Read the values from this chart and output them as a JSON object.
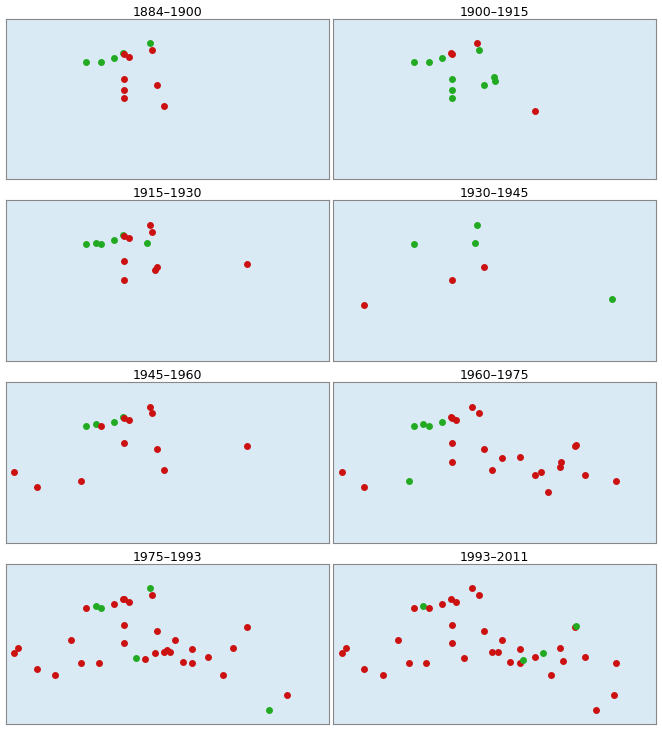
{
  "panels": [
    {
      "title": "1884–1900",
      "stations": [
        {
          "lon": 3.0,
          "lat": 43.3,
          "color": "green"
        },
        {
          "lon": 5.4,
          "lat": 43.3,
          "color": "green"
        },
        {
          "lon": 7.5,
          "lat": 43.8,
          "color": "green"
        },
        {
          "lon": 8.9,
          "lat": 44.4,
          "color": "green"
        },
        {
          "lon": 13.2,
          "lat": 45.6,
          "color": "green"
        },
        {
          "lon": 9.1,
          "lat": 44.3,
          "color": "red"
        },
        {
          "lon": 9.8,
          "lat": 44.0,
          "color": "red"
        },
        {
          "lon": 9.1,
          "lat": 41.3,
          "color": "red"
        },
        {
          "lon": 9.1,
          "lat": 40.1,
          "color": "red"
        },
        {
          "lon": 9.1,
          "lat": 39.1,
          "color": "red"
        },
        {
          "lon": 13.5,
          "lat": 44.8,
          "color": "red"
        },
        {
          "lon": 14.3,
          "lat": 40.6,
          "color": "red"
        },
        {
          "lon": 15.5,
          "lat": 38.1,
          "color": "red"
        }
      ]
    },
    {
      "title": "1900–1915",
      "stations": [
        {
          "lon": 3.0,
          "lat": 43.3,
          "color": "green"
        },
        {
          "lon": 5.4,
          "lat": 43.3,
          "color": "green"
        },
        {
          "lon": 7.5,
          "lat": 43.8,
          "color": "green"
        },
        {
          "lon": 9.1,
          "lat": 41.3,
          "color": "green"
        },
        {
          "lon": 9.1,
          "lat": 40.1,
          "color": "green"
        },
        {
          "lon": 9.1,
          "lat": 39.1,
          "color": "green"
        },
        {
          "lon": 13.5,
          "lat": 44.8,
          "color": "green"
        },
        {
          "lon": 14.3,
          "lat": 40.6,
          "color": "green"
        },
        {
          "lon": 15.9,
          "lat": 41.6,
          "color": "green"
        },
        {
          "lon": 16.1,
          "lat": 41.1,
          "color": "green"
        },
        {
          "lon": 8.9,
          "lat": 44.4,
          "color": "red"
        },
        {
          "lon": 9.1,
          "lat": 44.3,
          "color": "red"
        },
        {
          "lon": 13.2,
          "lat": 45.6,
          "color": "red"
        },
        {
          "lon": 22.5,
          "lat": 37.5,
          "color": "red"
        }
      ]
    },
    {
      "title": "1915–1930",
      "stations": [
        {
          "lon": 3.0,
          "lat": 43.3,
          "color": "green"
        },
        {
          "lon": 4.5,
          "lat": 43.5,
          "color": "green"
        },
        {
          "lon": 5.4,
          "lat": 43.3,
          "color": "green"
        },
        {
          "lon": 7.5,
          "lat": 43.8,
          "color": "green"
        },
        {
          "lon": 8.9,
          "lat": 44.4,
          "color": "green"
        },
        {
          "lon": 12.8,
          "lat": 43.5,
          "color": "green"
        },
        {
          "lon": 9.1,
          "lat": 44.3,
          "color": "red"
        },
        {
          "lon": 9.8,
          "lat": 44.0,
          "color": "red"
        },
        {
          "lon": 9.1,
          "lat": 41.3,
          "color": "red"
        },
        {
          "lon": 9.1,
          "lat": 39.1,
          "color": "red"
        },
        {
          "lon": 13.2,
          "lat": 45.6,
          "color": "red"
        },
        {
          "lon": 13.5,
          "lat": 44.8,
          "color": "red"
        },
        {
          "lon": 14.3,
          "lat": 40.6,
          "color": "red"
        },
        {
          "lon": 14.0,
          "lat": 40.2,
          "color": "red"
        },
        {
          "lon": 28.9,
          "lat": 41.0,
          "color": "red"
        }
      ]
    },
    {
      "title": "1930–1945",
      "stations": [
        {
          "lon": 3.0,
          "lat": 43.3,
          "color": "green"
        },
        {
          "lon": 12.8,
          "lat": 43.5,
          "color": "green"
        },
        {
          "lon": 13.2,
          "lat": 45.6,
          "color": "green"
        },
        {
          "lon": 34.9,
          "lat": 36.8,
          "color": "green"
        },
        {
          "lon": -5.0,
          "lat": 36.1,
          "color": "red"
        },
        {
          "lon": 9.1,
          "lat": 39.1,
          "color": "red"
        },
        {
          "lon": 14.3,
          "lat": 40.6,
          "color": "red"
        }
      ]
    },
    {
      "title": "1945–1960",
      "stations": [
        {
          "lon": -8.6,
          "lat": 37.9,
          "color": "red"
        },
        {
          "lon": -5.0,
          "lat": 36.1,
          "color": "red"
        },
        {
          "lon": 2.2,
          "lat": 36.8,
          "color": "red"
        },
        {
          "lon": 3.0,
          "lat": 43.3,
          "color": "green"
        },
        {
          "lon": 4.5,
          "lat": 43.5,
          "color": "green"
        },
        {
          "lon": 5.4,
          "lat": 43.3,
          "color": "red"
        },
        {
          "lon": 7.5,
          "lat": 43.8,
          "color": "green"
        },
        {
          "lon": 8.9,
          "lat": 44.4,
          "color": "green"
        },
        {
          "lon": 9.1,
          "lat": 44.3,
          "color": "red"
        },
        {
          "lon": 9.8,
          "lat": 44.0,
          "color": "red"
        },
        {
          "lon": 9.1,
          "lat": 41.3,
          "color": "red"
        },
        {
          "lon": 13.2,
          "lat": 45.6,
          "color": "red"
        },
        {
          "lon": 13.5,
          "lat": 44.8,
          "color": "red"
        },
        {
          "lon": 14.3,
          "lat": 40.6,
          "color": "red"
        },
        {
          "lon": 15.5,
          "lat": 38.1,
          "color": "red"
        },
        {
          "lon": 28.9,
          "lat": 41.0,
          "color": "red"
        }
      ]
    },
    {
      "title": "1960–1975",
      "stations": [
        {
          "lon": -8.6,
          "lat": 37.9,
          "color": "red"
        },
        {
          "lon": -5.0,
          "lat": 36.1,
          "color": "red"
        },
        {
          "lon": 2.2,
          "lat": 36.8,
          "color": "green"
        },
        {
          "lon": 3.0,
          "lat": 43.3,
          "color": "green"
        },
        {
          "lon": 4.5,
          "lat": 43.5,
          "color": "green"
        },
        {
          "lon": 5.4,
          "lat": 43.3,
          "color": "green"
        },
        {
          "lon": 7.5,
          "lat": 43.8,
          "color": "green"
        },
        {
          "lon": 8.9,
          "lat": 44.4,
          "color": "red"
        },
        {
          "lon": 9.1,
          "lat": 44.3,
          "color": "red"
        },
        {
          "lon": 9.8,
          "lat": 44.0,
          "color": "red"
        },
        {
          "lon": 9.1,
          "lat": 41.3,
          "color": "red"
        },
        {
          "lon": 9.1,
          "lat": 39.1,
          "color": "red"
        },
        {
          "lon": 12.3,
          "lat": 45.6,
          "color": "red"
        },
        {
          "lon": 13.5,
          "lat": 44.8,
          "color": "red"
        },
        {
          "lon": 14.3,
          "lat": 40.6,
          "color": "red"
        },
        {
          "lon": 15.5,
          "lat": 38.1,
          "color": "red"
        },
        {
          "lon": 17.2,
          "lat": 39.5,
          "color": "red"
        },
        {
          "lon": 20.0,
          "lat": 39.6,
          "color": "red"
        },
        {
          "lon": 22.5,
          "lat": 37.5,
          "color": "red"
        },
        {
          "lon": 23.5,
          "lat": 37.9,
          "color": "red"
        },
        {
          "lon": 24.5,
          "lat": 35.5,
          "color": "red"
        },
        {
          "lon": 26.5,
          "lat": 38.5,
          "color": "red"
        },
        {
          "lon": 26.7,
          "lat": 39.0,
          "color": "red"
        },
        {
          "lon": 28.9,
          "lat": 41.0,
          "color": "red"
        },
        {
          "lon": 29.1,
          "lat": 41.1,
          "color": "red"
        },
        {
          "lon": 30.5,
          "lat": 37.5,
          "color": "red"
        },
        {
          "lon": 35.5,
          "lat": 36.8,
          "color": "red"
        }
      ]
    },
    {
      "title": "1975–1993",
      "stations": [
        {
          "lon": -8.6,
          "lat": 37.9,
          "color": "red"
        },
        {
          "lon": -8.0,
          "lat": 38.5,
          "color": "red"
        },
        {
          "lon": -5.0,
          "lat": 36.1,
          "color": "red"
        },
        {
          "lon": -2.0,
          "lat": 35.4,
          "color": "red"
        },
        {
          "lon": 0.5,
          "lat": 39.5,
          "color": "red"
        },
        {
          "lon": 2.2,
          "lat": 36.8,
          "color": "red"
        },
        {
          "lon": 3.0,
          "lat": 43.3,
          "color": "red"
        },
        {
          "lon": 4.5,
          "lat": 43.5,
          "color": "green"
        },
        {
          "lon": 5.0,
          "lat": 36.8,
          "color": "red"
        },
        {
          "lon": 5.4,
          "lat": 43.3,
          "color": "green"
        },
        {
          "lon": 7.5,
          "lat": 43.8,
          "color": "red"
        },
        {
          "lon": 8.9,
          "lat": 44.4,
          "color": "red"
        },
        {
          "lon": 9.1,
          "lat": 44.3,
          "color": "red"
        },
        {
          "lon": 9.8,
          "lat": 44.0,
          "color": "red"
        },
        {
          "lon": 9.1,
          "lat": 41.3,
          "color": "red"
        },
        {
          "lon": 9.1,
          "lat": 39.1,
          "color": "red"
        },
        {
          "lon": 11.0,
          "lat": 37.4,
          "color": "green"
        },
        {
          "lon": 12.5,
          "lat": 37.3,
          "color": "red"
        },
        {
          "lon": 13.2,
          "lat": 45.6,
          "color": "green"
        },
        {
          "lon": 13.5,
          "lat": 44.8,
          "color": "red"
        },
        {
          "lon": 14.0,
          "lat": 38.0,
          "color": "red"
        },
        {
          "lon": 14.3,
          "lat": 40.6,
          "color": "red"
        },
        {
          "lon": 15.5,
          "lat": 38.1,
          "color": "red"
        },
        {
          "lon": 15.9,
          "lat": 38.3,
          "color": "red"
        },
        {
          "lon": 16.5,
          "lat": 38.1,
          "color": "red"
        },
        {
          "lon": 17.2,
          "lat": 39.5,
          "color": "red"
        },
        {
          "lon": 18.5,
          "lat": 36.9,
          "color": "red"
        },
        {
          "lon": 20.0,
          "lat": 36.8,
          "color": "red"
        },
        {
          "lon": 20.0,
          "lat": 38.4,
          "color": "red"
        },
        {
          "lon": 22.5,
          "lat": 37.5,
          "color": "red"
        },
        {
          "lon": 25.0,
          "lat": 35.4,
          "color": "red"
        },
        {
          "lon": 26.5,
          "lat": 38.5,
          "color": "red"
        },
        {
          "lon": 28.9,
          "lat": 41.0,
          "color": "red"
        },
        {
          "lon": 32.3,
          "lat": 31.2,
          "color": "green"
        },
        {
          "lon": 35.2,
          "lat": 33.0,
          "color": "red"
        }
      ]
    },
    {
      "title": "1993–2011",
      "stations": [
        {
          "lon": -8.6,
          "lat": 37.9,
          "color": "red"
        },
        {
          "lon": -8.0,
          "lat": 38.5,
          "color": "red"
        },
        {
          "lon": -5.0,
          "lat": 36.1,
          "color": "red"
        },
        {
          "lon": -2.0,
          "lat": 35.4,
          "color": "red"
        },
        {
          "lon": 0.5,
          "lat": 39.5,
          "color": "red"
        },
        {
          "lon": 2.2,
          "lat": 36.8,
          "color": "red"
        },
        {
          "lon": 3.0,
          "lat": 43.3,
          "color": "red"
        },
        {
          "lon": 4.5,
          "lat": 43.5,
          "color": "green"
        },
        {
          "lon": 5.0,
          "lat": 36.8,
          "color": "red"
        },
        {
          "lon": 5.4,
          "lat": 43.3,
          "color": "red"
        },
        {
          "lon": 7.5,
          "lat": 43.8,
          "color": "red"
        },
        {
          "lon": 8.9,
          "lat": 44.4,
          "color": "red"
        },
        {
          "lon": 9.8,
          "lat": 44.0,
          "color": "red"
        },
        {
          "lon": 9.1,
          "lat": 41.3,
          "color": "red"
        },
        {
          "lon": 9.1,
          "lat": 39.1,
          "color": "red"
        },
        {
          "lon": 11.0,
          "lat": 37.4,
          "color": "red"
        },
        {
          "lon": 12.3,
          "lat": 45.6,
          "color": "red"
        },
        {
          "lon": 13.5,
          "lat": 44.8,
          "color": "red"
        },
        {
          "lon": 14.3,
          "lat": 40.6,
          "color": "red"
        },
        {
          "lon": 15.5,
          "lat": 38.1,
          "color": "red"
        },
        {
          "lon": 16.5,
          "lat": 38.1,
          "color": "red"
        },
        {
          "lon": 17.2,
          "lat": 39.5,
          "color": "red"
        },
        {
          "lon": 18.5,
          "lat": 36.9,
          "color": "red"
        },
        {
          "lon": 20.0,
          "lat": 36.8,
          "color": "red"
        },
        {
          "lon": 20.0,
          "lat": 38.4,
          "color": "red"
        },
        {
          "lon": 20.5,
          "lat": 37.1,
          "color": "green"
        },
        {
          "lon": 22.5,
          "lat": 37.5,
          "color": "red"
        },
        {
          "lon": 23.7,
          "lat": 37.9,
          "color": "green"
        },
        {
          "lon": 25.0,
          "lat": 35.4,
          "color": "red"
        },
        {
          "lon": 26.5,
          "lat": 38.5,
          "color": "red"
        },
        {
          "lon": 27.0,
          "lat": 37.0,
          "color": "red"
        },
        {
          "lon": 28.9,
          "lat": 41.0,
          "color": "red"
        },
        {
          "lon": 29.1,
          "lat": 41.1,
          "color": "green"
        },
        {
          "lon": 30.5,
          "lat": 37.5,
          "color": "red"
        },
        {
          "lon": 32.3,
          "lat": 31.2,
          "color": "red"
        },
        {
          "lon": 35.2,
          "lat": 33.0,
          "color": "red"
        },
        {
          "lon": 35.5,
          "lat": 36.8,
          "color": "red"
        }
      ]
    }
  ],
  "lon_min": -10,
  "lon_max": 42,
  "lat_min": 29.5,
  "lat_max": 48.5,
  "red_color": "#cc1111",
  "green_color": "#22aa22",
  "title_fontsize": 9,
  "marker_size": 5,
  "bg_color": "white",
  "border_color": "#888888"
}
